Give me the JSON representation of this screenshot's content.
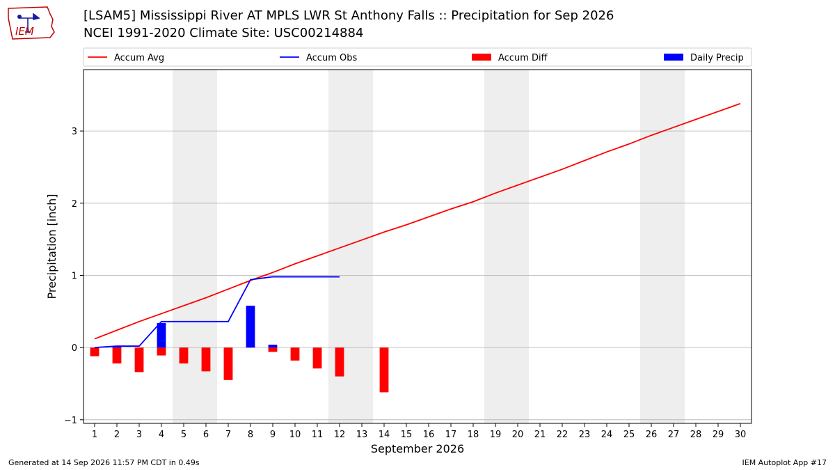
{
  "header": {
    "title_line1": "[LSAM5] Mississippi River  AT MPLS LWR St Anthony Falls :: Precipitation for Sep 2026",
    "title_line2": "NCEI 1991-2020 Climate Site: USC00214884",
    "logo_text": "IEM"
  },
  "footer": {
    "generated": "Generated at 14 Sep 2026 11:57 PM CDT in 0.49s",
    "app": "IEM Autoplot App #17"
  },
  "chart_data": {
    "type": "bar",
    "xlabel": "September 2026",
    "ylabel": "Precipitation [inch]",
    "xlim": [
      0.5,
      30.5
    ],
    "ylim": [
      -1.05,
      3.85
    ],
    "yticks": [
      -1,
      0,
      1,
      2,
      3
    ],
    "grid": "horizontal",
    "legend_placement": "top",
    "weekend_shading": [
      [
        5,
        6
      ],
      [
        12,
        13
      ],
      [
        19,
        20
      ],
      [
        26,
        27
      ]
    ],
    "days": [
      1,
      2,
      3,
      4,
      5,
      6,
      7,
      8,
      9,
      10,
      11,
      12,
      13,
      14,
      15,
      16,
      17,
      18,
      19,
      20,
      21,
      22,
      23,
      24,
      25,
      26,
      27,
      28,
      29,
      30
    ],
    "series": [
      {
        "name": "Accum Avg",
        "color": "#ff0000",
        "kind": "line",
        "x": [
          1,
          2,
          3,
          4,
          5,
          6,
          7,
          8,
          9,
          10,
          11,
          12,
          13,
          14,
          15,
          16,
          17,
          18,
          19,
          20,
          21,
          22,
          23,
          24,
          25,
          26,
          27,
          28,
          29,
          30
        ],
        "values": [
          0.12,
          0.24,
          0.36,
          0.47,
          0.58,
          0.69,
          0.81,
          0.93,
          1.04,
          1.16,
          1.27,
          1.38,
          1.49,
          1.6,
          1.7,
          1.81,
          1.92,
          2.02,
          2.14,
          2.25,
          2.36,
          2.47,
          2.59,
          2.71,
          2.82,
          2.94,
          3.05,
          3.16,
          3.27,
          3.38
        ]
      },
      {
        "name": "Accum Obs",
        "color": "#0000ff",
        "kind": "line",
        "x": [
          1,
          2,
          3,
          4,
          5,
          6,
          7,
          8,
          9,
          10,
          11,
          12
        ],
        "values": [
          0.0,
          0.02,
          0.02,
          0.36,
          0.36,
          0.36,
          0.36,
          0.94,
          0.98,
          0.98,
          0.98,
          0.98
        ]
      },
      {
        "name": "Accum Diff",
        "color": "#ff0000",
        "kind": "bar",
        "x": [
          1,
          2,
          3,
          4,
          5,
          6,
          7,
          8,
          9,
          10,
          11,
          12,
          14
        ],
        "values": [
          -0.12,
          -0.22,
          -0.34,
          -0.11,
          -0.22,
          -0.33,
          -0.45,
          0.01,
          -0.06,
          -0.18,
          -0.29,
          -0.4,
          -0.62
        ]
      },
      {
        "name": "Daily Precip",
        "color": "#0000ff",
        "kind": "bar",
        "x": [
          2,
          4,
          8,
          9
        ],
        "values": [
          0.02,
          0.34,
          0.58,
          0.04
        ]
      }
    ]
  }
}
